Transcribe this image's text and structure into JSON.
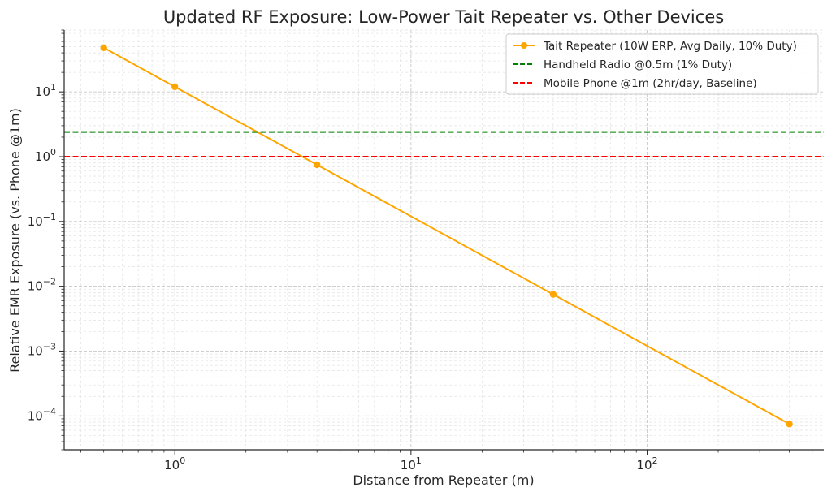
{
  "chart_data": {
    "type": "line",
    "title": "Updated RF Exposure: Low-Power Tait Repeater vs. Other Devices",
    "xlabel": "Distance from Repeater (m)",
    "ylabel": "Relative EMR Exposure (vs. Phone @1m)",
    "xscale": "log",
    "yscale": "log",
    "xlim": [
      0.34,
      560
    ],
    "ylim": [
      3e-05,
      90
    ],
    "grid": true,
    "legend_position": "top-right",
    "x_ticks": [
      {
        "value": 1,
        "base": "10",
        "exp": "0"
      },
      {
        "value": 10,
        "base": "10",
        "exp": "1"
      },
      {
        "value": 100,
        "base": "10",
        "exp": "2"
      }
    ],
    "y_ticks": [
      {
        "value": 10,
        "base": "10",
        "exp": "1"
      },
      {
        "value": 1,
        "base": "10",
        "exp": "0"
      },
      {
        "value": 0.1,
        "base": "10",
        "exp": "−1"
      },
      {
        "value": 0.01,
        "base": "10",
        "exp": "−2"
      },
      {
        "value": 0.001,
        "base": "10",
        "exp": "−3"
      },
      {
        "value": 0.0001,
        "base": "10",
        "exp": "−4"
      }
    ],
    "series": [
      {
        "name": "Tait Repeater (10W ERP, Avg Daily, 10% Duty)",
        "color": "#FFA500",
        "style": "solid",
        "marker": "circle",
        "x": [
          0.5,
          1,
          4,
          40,
          400
        ],
        "y": [
          48,
          12,
          0.75,
          0.0075,
          7.5e-05
        ]
      },
      {
        "name": "Handheld Radio @0.5m (1% Duty)",
        "color": "#008000",
        "style": "dashed",
        "marker": "none",
        "hline": 2.4
      },
      {
        "name": "Mobile Phone @1m (2hr/day, Baseline)",
        "color": "#FF0000",
        "style": "dashed",
        "marker": "none",
        "hline": 1.0
      }
    ]
  }
}
